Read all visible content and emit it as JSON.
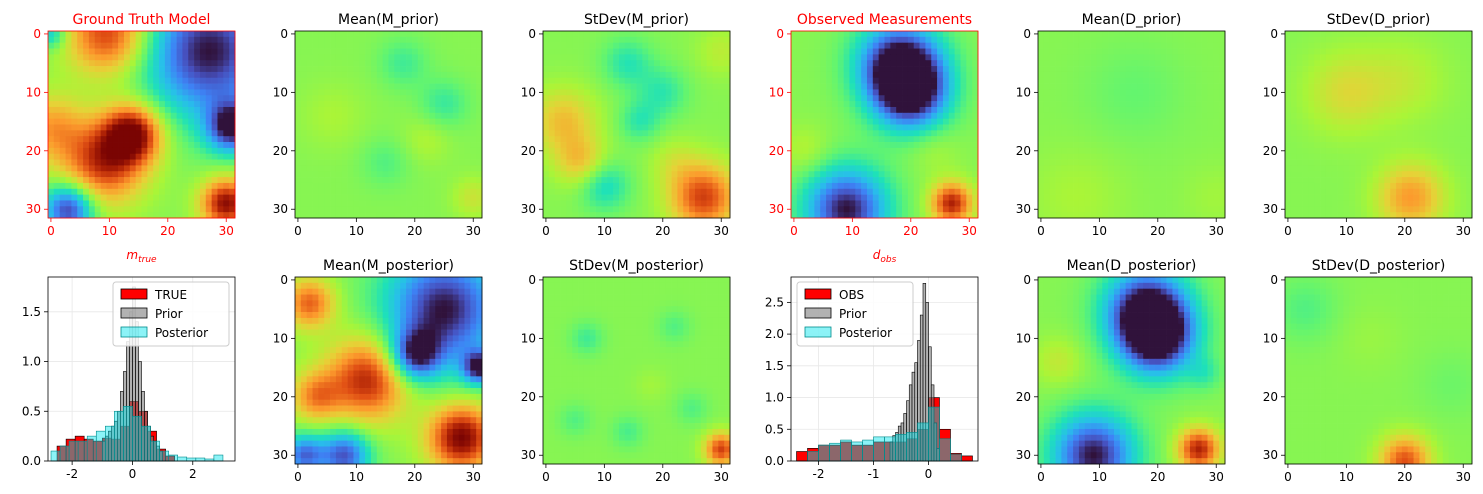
{
  "colors": {
    "red": "#ff0000",
    "black": "#000000",
    "grid": "#e8e8e8",
    "prior": "#7f7f7f",
    "posterior": "#00e5ee"
  },
  "chart_data": [
    {
      "type": "heatmap",
      "title": "Ground Truth Model",
      "title_color": "#ff0000",
      "xlabel_main": "m",
      "xlabel_sub": "true",
      "xticks": [
        "0",
        "10",
        "20",
        "30"
      ],
      "yticks": [
        "0",
        "10",
        "20",
        "30"
      ],
      "colormap": "turbo",
      "blobs": [
        [
          0,
          0,
          1.8,
          -0.9
        ],
        [
          10,
          0,
          5,
          1.6
        ],
        [
          0,
          16,
          4,
          0.9
        ],
        [
          14,
          17,
          3.5,
          1.9
        ],
        [
          9,
          22,
          5,
          1.6
        ],
        [
          3,
          30,
          3,
          -1.9
        ],
        [
          30,
          29,
          3,
          1.9
        ],
        [
          27,
          3,
          8,
          -2.0
        ],
        [
          31,
          16,
          3,
          -1.9
        ]
      ]
    },
    {
      "type": "heatmap",
      "title": "Mean(M_prior)",
      "xticks": [
        "0",
        "10",
        "20",
        "30"
      ],
      "yticks": [
        "0",
        "10",
        "20",
        "30"
      ],
      "colormap": "turbo",
      "blobs": [
        [
          18,
          5,
          3,
          -0.4
        ],
        [
          25,
          12,
          3,
          -0.45
        ],
        [
          6,
          14,
          4,
          0.2
        ],
        [
          15,
          22,
          3,
          -0.3
        ],
        [
          22,
          18,
          3,
          0.25
        ],
        [
          30,
          28,
          2.5,
          0.4
        ]
      ]
    },
    {
      "type": "heatmap",
      "title": "StDev(M_prior)",
      "xticks": [
        "0",
        "10",
        "20",
        "30"
      ],
      "yticks": [
        "0",
        "10",
        "20",
        "30"
      ],
      "colormap": "turbo",
      "blobs": [
        [
          3,
          15,
          4,
          0.75
        ],
        [
          6,
          22,
          3,
          0.7
        ],
        [
          14,
          5,
          3,
          -0.55
        ],
        [
          20,
          10,
          3,
          -0.5
        ],
        [
          10,
          26,
          3,
          -0.7
        ],
        [
          27,
          28,
          4,
          1.5
        ],
        [
          22,
          22,
          3,
          0.3
        ],
        [
          30,
          3,
          3,
          0.3
        ],
        [
          16,
          15,
          2.5,
          -0.5
        ]
      ]
    },
    {
      "type": "heatmap",
      "title": "Observed Measurements",
      "title_color": "#ff0000",
      "xlabel_main": "d",
      "xlabel_sub": "obs",
      "xticks": [
        "0",
        "10",
        "20",
        "30"
      ],
      "yticks": [
        "0",
        "10",
        "20",
        "30"
      ],
      "colormap": "turbo",
      "blobs": [
        [
          18,
          5,
          5,
          -2.0
        ],
        [
          20,
          10,
          4.5,
          -2.0
        ],
        [
          9,
          30,
          5,
          -2.0
        ],
        [
          27,
          29,
          2.5,
          1.7
        ],
        [
          2,
          20,
          3,
          0.3
        ],
        [
          24,
          20,
          3,
          0.2
        ]
      ]
    },
    {
      "type": "heatmap",
      "title": "Mean(D_prior)",
      "xticks": [
        "0",
        "10",
        "20",
        "30"
      ],
      "yticks": [
        "0",
        "10",
        "20",
        "30"
      ],
      "colormap": "turbo",
      "blobs": [
        [
          16,
          10,
          6,
          -0.2
        ],
        [
          6,
          28,
          6,
          0.2
        ],
        [
          30,
          28,
          4,
          0.15
        ]
      ]
    },
    {
      "type": "heatmap",
      "title": "StDev(D_prior)",
      "xticks": [
        "0",
        "10",
        "20",
        "30"
      ],
      "yticks": [
        "0",
        "10",
        "20",
        "30"
      ],
      "colormap": "turbo",
      "blobs": [
        [
          21,
          28,
          4,
          1.0
        ],
        [
          10,
          10,
          5,
          0.5
        ],
        [
          20,
          8,
          5,
          0.3
        ]
      ]
    },
    {
      "type": "bar",
      "subtype": "histogram",
      "xlim": [
        -2.8,
        3.4
      ],
      "ylim": [
        0,
        1.85
      ],
      "xticks": [
        "-2",
        "0",
        "2"
      ],
      "yticks": [
        "0.0",
        "0.5",
        "1.0",
        "1.5"
      ],
      "grid": true,
      "legend_position": "top-right",
      "series": [
        {
          "name": "TRUE",
          "color": "#ff0000",
          "edges": [
            -2.5,
            -2.2,
            -1.9,
            -1.6,
            -1.3,
            -1.0,
            -0.7,
            -0.4,
            -0.1,
            0.2,
            0.5,
            0.8,
            1.1,
            1.4
          ],
          "values": [
            0.15,
            0.22,
            0.25,
            0.22,
            0.2,
            0.23,
            0.22,
            0.35,
            0.6,
            0.5,
            0.3,
            0.12,
            0.05
          ]
        },
        {
          "name": "Prior",
          "color": "#7f7f7f",
          "edges": [
            -1.0,
            -0.9,
            -0.8,
            -0.7,
            -0.6,
            -0.5,
            -0.4,
            -0.3,
            -0.2,
            -0.1,
            0.0,
            0.1,
            0.2,
            0.3,
            0.4,
            0.5,
            0.6,
            0.7,
            0.8,
            0.9,
            1.0
          ],
          "values": [
            0.2,
            0.25,
            0.3,
            0.35,
            0.4,
            0.5,
            0.7,
            0.9,
            1.2,
            1.5,
            1.75,
            1.4,
            1.0,
            0.7,
            0.5,
            0.35,
            0.25,
            0.2,
            0.15,
            0.1
          ]
        },
        {
          "name": "Posterior",
          "color": "#00e5ee",
          "edges": [
            -2.7,
            -2.4,
            -2.1,
            -1.8,
            -1.5,
            -1.2,
            -0.9,
            -0.6,
            -0.3,
            0.0,
            0.3,
            0.6,
            0.9,
            1.2,
            1.5,
            1.8,
            2.1,
            2.4,
            2.7,
            3.0
          ],
          "values": [
            0.1,
            0.15,
            0.2,
            0.2,
            0.25,
            0.3,
            0.35,
            0.5,
            0.55,
            0.45,
            0.35,
            0.2,
            0.1,
            0.06,
            0.04,
            0.03,
            0.03,
            0.02,
            0.06
          ]
        }
      ]
    },
    {
      "type": "heatmap",
      "title": "Mean(M_posterior)",
      "xticks": [
        "0",
        "10",
        "20",
        "30"
      ],
      "yticks": [
        "0",
        "10",
        "20",
        "30"
      ],
      "colormap": "turbo",
      "blobs": [
        [
          2,
          4,
          3,
          1.3
        ],
        [
          12,
          17,
          5,
          1.7
        ],
        [
          3,
          20,
          3,
          1.0
        ],
        [
          28,
          27,
          4,
          2.0
        ],
        [
          25,
          5,
          7,
          -2.0
        ],
        [
          20,
          13,
          3,
          -1.7
        ],
        [
          8,
          30,
          3,
          -1.7
        ],
        [
          1,
          30,
          2.5,
          -1.5
        ],
        [
          31,
          15,
          2,
          -1.8
        ]
      ]
    },
    {
      "type": "heatmap",
      "title": "StDev(M_posterior)",
      "xticks": [
        "0",
        "10",
        "20",
        "30"
      ],
      "yticks": [
        "0",
        "10",
        "20",
        "30"
      ],
      "colormap": "turbo",
      "blobs": [
        [
          7,
          10,
          2,
          -0.4
        ],
        [
          14,
          26,
          2,
          -0.35
        ],
        [
          22,
          8,
          2,
          -0.3
        ],
        [
          30,
          29,
          2,
          1.5
        ],
        [
          18,
          18,
          2,
          0.15
        ],
        [
          5,
          24,
          2,
          -0.3
        ],
        [
          25,
          22,
          2,
          -0.3
        ]
      ]
    },
    {
      "type": "bar",
      "subtype": "histogram",
      "xlim": [
        -2.5,
        0.9
      ],
      "ylim": [
        0,
        2.9
      ],
      "xticks": [
        "-2",
        "-1",
        "0"
      ],
      "yticks": [
        "0.0",
        "0.5",
        "1.0",
        "1.5",
        "2.0",
        "2.5"
      ],
      "grid": true,
      "legend_position": "top-left",
      "series": [
        {
          "name": "OBS",
          "color": "#ff0000",
          "edges": [
            -2.4,
            -2.2,
            -2.0,
            -1.8,
            -1.6,
            -1.4,
            -1.2,
            -1.0,
            -0.8,
            -0.6,
            -0.4,
            -0.2,
            0.0,
            0.2,
            0.4,
            0.6,
            0.8
          ],
          "values": [
            0.15,
            0.2,
            0.25,
            0.25,
            0.3,
            0.25,
            0.25,
            0.3,
            0.3,
            0.3,
            0.35,
            0.5,
            1.0,
            0.5,
            0.12,
            0.08
          ]
        },
        {
          "name": "Prior",
          "color": "#7f7f7f",
          "edges": [
            -0.7,
            -0.65,
            -0.6,
            -0.55,
            -0.5,
            -0.45,
            -0.4,
            -0.35,
            -0.3,
            -0.25,
            -0.2,
            -0.15,
            -0.1,
            -0.05,
            0.0,
            0.05,
            0.1,
            0.15,
            0.2
          ],
          "values": [
            0.3,
            0.4,
            0.45,
            0.55,
            0.6,
            0.75,
            0.95,
            1.2,
            1.4,
            1.55,
            1.9,
            2.3,
            2.8,
            2.5,
            1.8,
            1.2,
            0.6,
            0.2
          ]
        },
        {
          "name": "Posterior",
          "color": "#00e5ee",
          "edges": [
            -2.2,
            -2.0,
            -1.8,
            -1.6,
            -1.4,
            -1.2,
            -1.0,
            -0.8,
            -0.6,
            -0.4,
            -0.2,
            0.0,
            0.2,
            0.4,
            0.6
          ],
          "values": [
            0.15,
            0.25,
            0.28,
            0.33,
            0.3,
            0.33,
            0.38,
            0.38,
            0.42,
            0.45,
            0.6,
            0.85,
            0.35,
            0.1
          ]
        }
      ]
    },
    {
      "type": "heatmap",
      "title": "Mean(D_posterior)",
      "xticks": [
        "0",
        "10",
        "20",
        "30"
      ],
      "yticks": [
        "0",
        "10",
        "20",
        "30"
      ],
      "colormap": "turbo",
      "blobs": [
        [
          18,
          5,
          5,
          -2.0
        ],
        [
          20,
          10,
          4.5,
          -2.0
        ],
        [
          9,
          30,
          5,
          -2.0
        ],
        [
          27,
          29,
          2.5,
          1.7
        ],
        [
          3,
          14,
          3,
          0.35
        ],
        [
          28,
          16,
          2,
          -0.4
        ]
      ]
    },
    {
      "type": "heatmap",
      "title": "StDev(D_posterior)",
      "xticks": [
        "0",
        "10",
        "20",
        "30"
      ],
      "yticks": [
        "0",
        "10",
        "20",
        "30"
      ],
      "colormap": "turbo",
      "blobs": [
        [
          3,
          5,
          4,
          -0.3
        ],
        [
          20,
          31,
          3,
          1.4
        ],
        [
          14,
          10,
          4,
          0.1
        ],
        [
          28,
          18,
          4,
          -0.15
        ]
      ]
    }
  ]
}
